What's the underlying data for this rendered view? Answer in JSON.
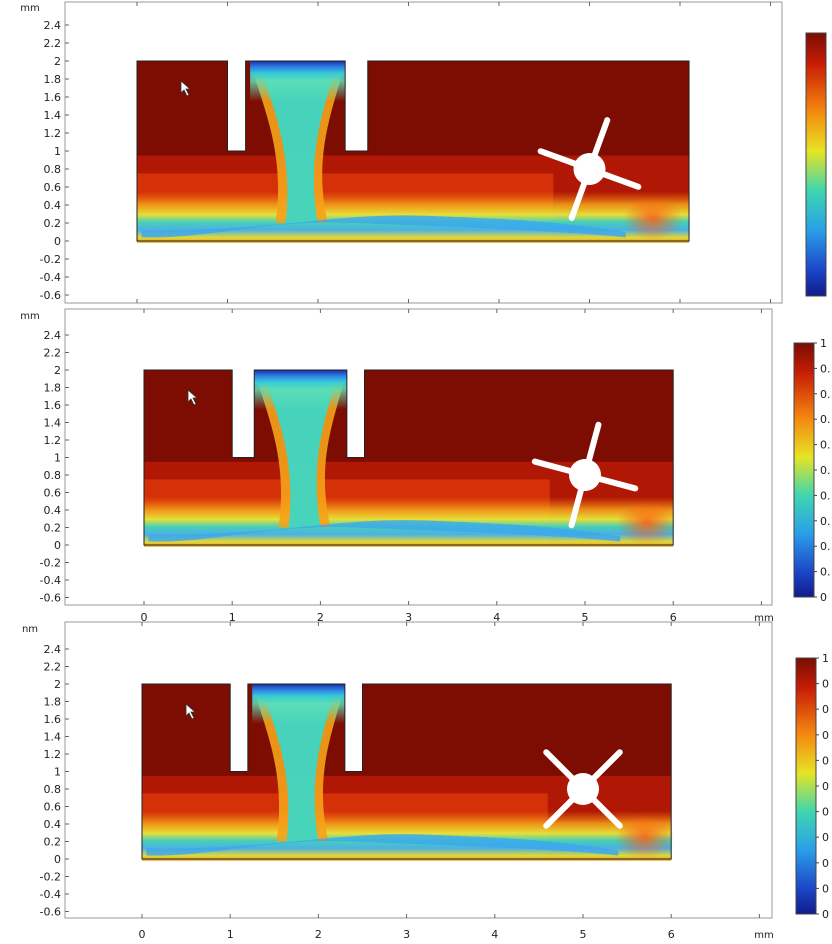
{
  "chart_data": [
    {
      "type": "heatmap",
      "title": "",
      "xlabel": "",
      "ylabel": "",
      "y_unit": "mm",
      "x_unit": "",
      "ylim": [
        -0.6,
        2.4
      ],
      "xlim": [
        -0.6,
        7.3
      ],
      "y_ticks": [
        "2.4",
        "2.2",
        "2",
        "1.8",
        "1.6",
        "1.4",
        "1.2",
        "1",
        "0.8",
        "0.6",
        "0.4",
        "0.2",
        "0",
        "-0.2",
        "-0.4",
        "-0.6"
      ],
      "y_tick_values": [
        2.4,
        2.2,
        2,
        1.8,
        1.6,
        1.4,
        1.2,
        1,
        0.8,
        0.6,
        0.4,
        0.2,
        0,
        -0.2,
        -0.4,
        -0.6
      ],
      "x_ticks": [],
      "geometry": {
        "domain_x": [
          0,
          6.1
        ],
        "domain_y": [
          0,
          2
        ],
        "baffles": [
          [
            1,
            1.2
          ],
          [
            2.3,
            2.55
          ]
        ],
        "baffle_bottom": 1,
        "inlet_x": [
          1.25,
          2.3
        ],
        "rotor": {
          "cx": 5,
          "cy": 0.8,
          "angle_deg": 20
        }
      },
      "colorbar": {
        "range": [
          0,
          1
        ],
        "labels": []
      },
      "colors": {
        "high": "#7a0c03",
        "low": "#1530a8"
      }
    },
    {
      "type": "heatmap",
      "title": "",
      "xlabel": "",
      "ylabel": "",
      "y_unit": "mm",
      "x_unit": "mm",
      "ylim": [
        -0.6,
        2.4
      ],
      "xlim": [
        -0.6,
        7.3
      ],
      "y_ticks": [
        "2.4",
        "2.2",
        "2",
        "1.8",
        "1.6",
        "1.4",
        "1.2",
        "1",
        "0.8",
        "0.6",
        "0.4",
        "0.2",
        "0",
        "-0.2",
        "-0.4",
        "-0.6"
      ],
      "y_tick_values": [
        2.4,
        2.2,
        2,
        1.8,
        1.6,
        1.4,
        1.2,
        1,
        0.8,
        0.6,
        0.4,
        0.2,
        0,
        -0.2,
        -0.4,
        -0.6
      ],
      "x_ticks": [
        "0",
        "1",
        "2",
        "3",
        "4",
        "5",
        "6"
      ],
      "x_tick_values": [
        0,
        1,
        2,
        3,
        4,
        5,
        6
      ],
      "geometry": {
        "domain_x": [
          0,
          6
        ],
        "domain_y": [
          0,
          2
        ],
        "baffles": [
          [
            1,
            1.25
          ],
          [
            2.3,
            2.5
          ]
        ],
        "baffle_bottom": 1,
        "inlet_x": [
          1.25,
          2.3
        ],
        "rotor": {
          "cx": 5,
          "cy": 0.8,
          "angle_deg": 15
        }
      },
      "colorbar": {
        "range": [
          0,
          1
        ],
        "labels": [
          "1",
          "0.",
          "0.",
          "0.",
          "0.",
          "0.",
          "0.",
          "0.",
          "0.",
          "0.",
          "0"
        ]
      },
      "colors": {
        "high": "#7a0c03",
        "low": "#1530a8"
      }
    },
    {
      "type": "heatmap",
      "title": "",
      "xlabel": "",
      "ylabel": "",
      "y_unit": "nm",
      "x_unit": "mm",
      "ylim": [
        -0.6,
        2.4
      ],
      "xlim": [
        -0.6,
        7.3
      ],
      "y_ticks": [
        "2.4",
        "2.2",
        "2",
        "1.8",
        "1.6",
        "1.4",
        "1.2",
        "1",
        "0.8",
        "0.6",
        "0.4",
        "0.2",
        "0",
        "-0.2",
        "-0.4",
        "-0.6"
      ],
      "y_tick_values": [
        2.4,
        2.2,
        2,
        1.8,
        1.6,
        1.4,
        1.2,
        1,
        0.8,
        0.6,
        0.4,
        0.2,
        0,
        -0.2,
        -0.4,
        -0.6
      ],
      "x_ticks": [
        "0",
        "1",
        "2",
        "3",
        "4",
        "5",
        "6"
      ],
      "x_tick_values": [
        0,
        1,
        2,
        3,
        4,
        5,
        6
      ],
      "geometry": {
        "domain_x": [
          0,
          6
        ],
        "domain_y": [
          0,
          2
        ],
        "baffles": [
          [
            1,
            1.2
          ],
          [
            2.3,
            2.5
          ]
        ],
        "baffle_bottom": 1,
        "inlet_x": [
          1.25,
          2.3
        ],
        "rotor": {
          "cx": 5,
          "cy": 0.8,
          "angle_deg": 45
        }
      },
      "colorbar": {
        "range": [
          0,
          1
        ],
        "labels": [
          "1",
          "0",
          "0",
          "0",
          "0",
          "0",
          "0",
          "0",
          "0",
          "0",
          "0"
        ]
      },
      "colors": {
        "high": "#7a0c03",
        "low": "#1530a8"
      }
    }
  ]
}
